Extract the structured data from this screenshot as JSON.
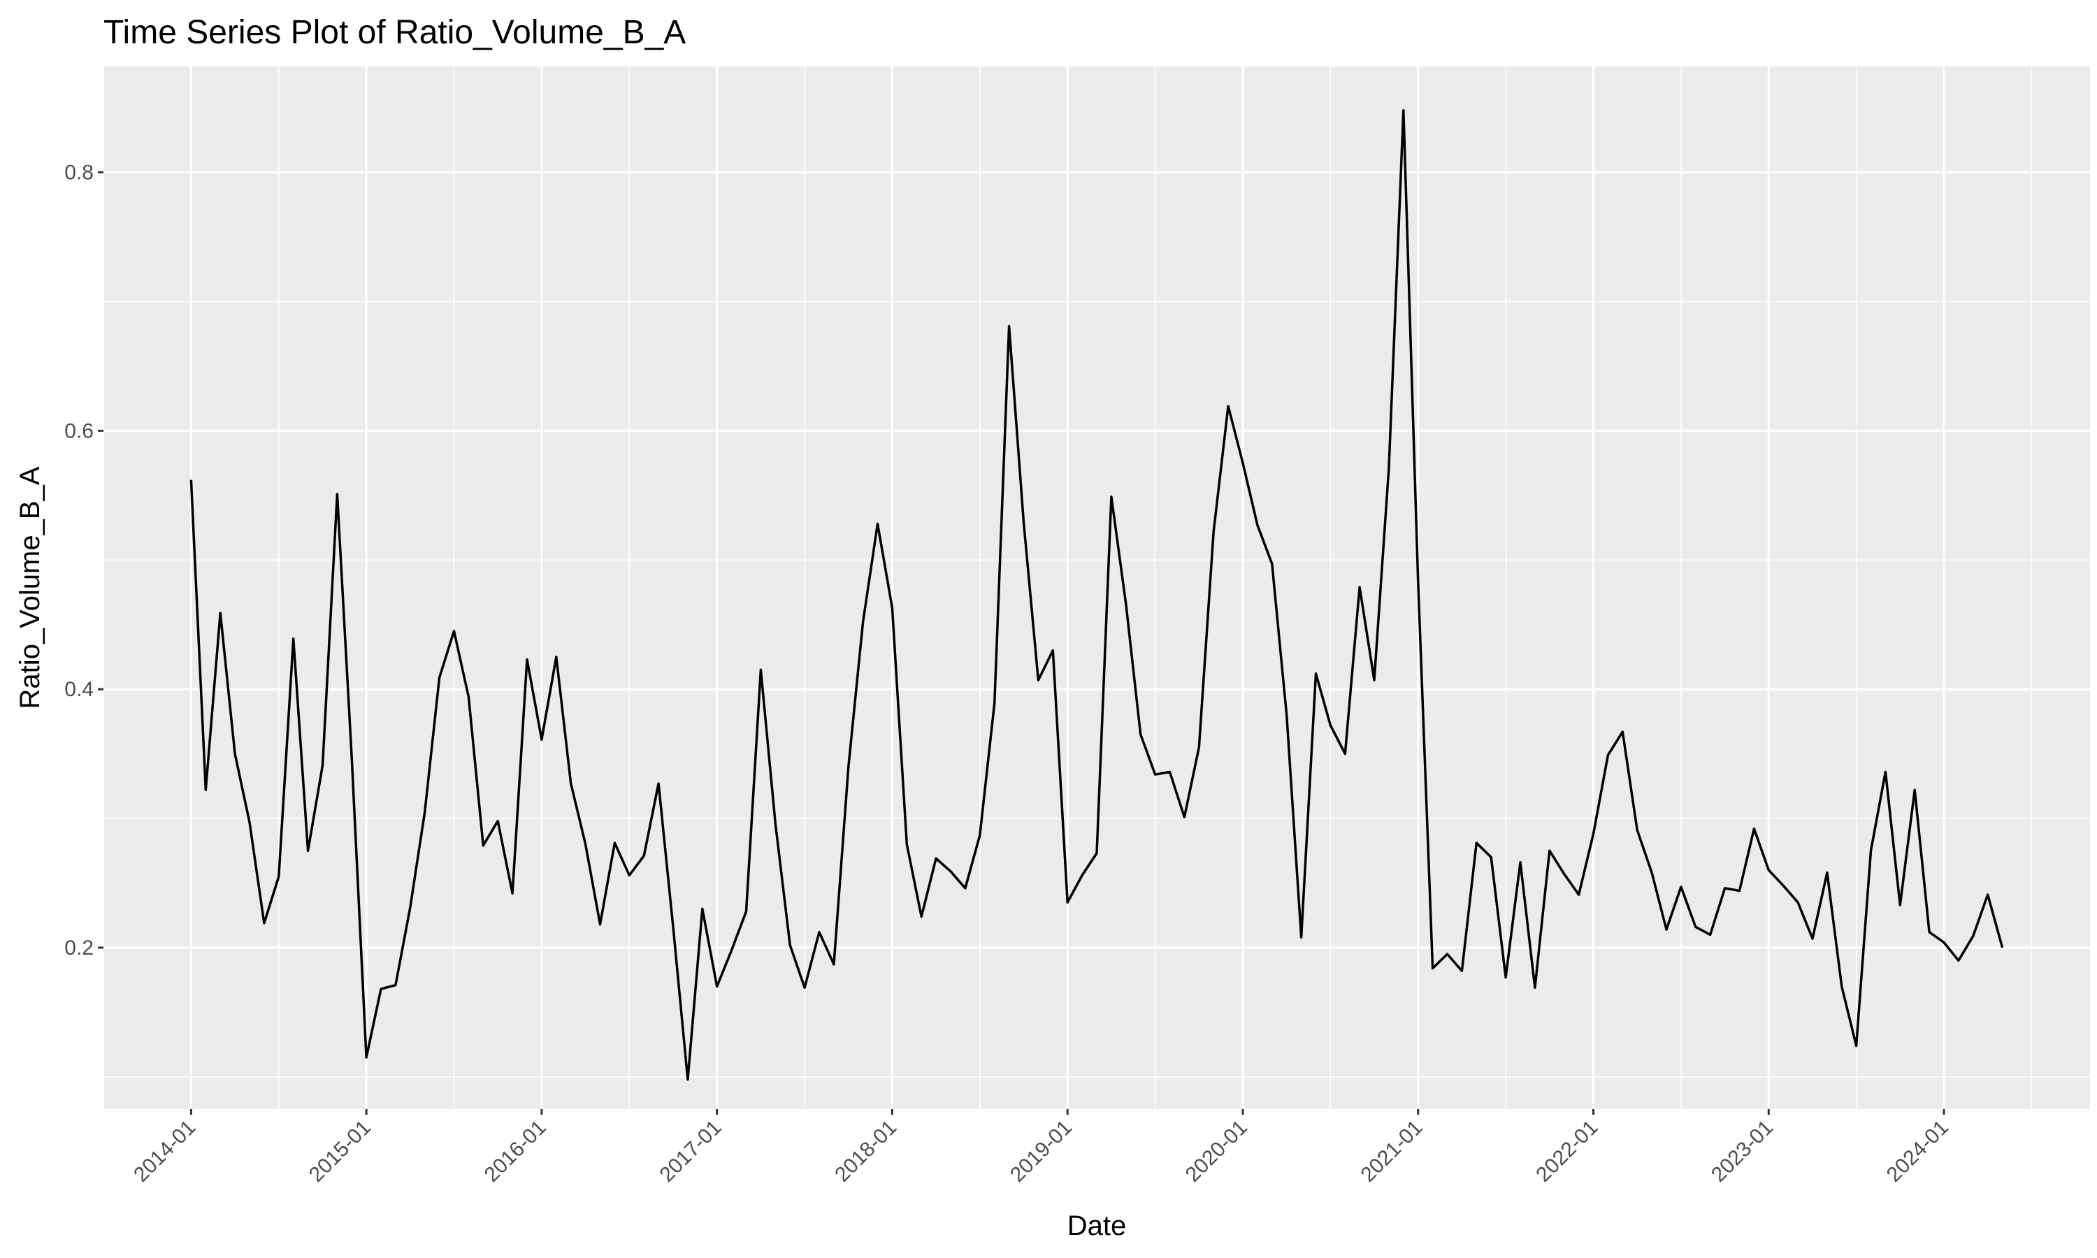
{
  "chart_data": {
    "type": "line",
    "title": "Time Series Plot of Ratio_Volume_B_A",
    "xlabel": "Date",
    "ylabel": "Ratio_Volume_B_A",
    "x_ticks": [
      "2014-01",
      "2015-01",
      "2016-01",
      "2017-01",
      "2018-01",
      "2019-01",
      "2020-01",
      "2021-01",
      "2022-01",
      "2023-01",
      "2024-01"
    ],
    "y_ticks": [
      0.2,
      0.4,
      0.6,
      0.8
    ],
    "y_tick_labels": [
      "0.2",
      "0.4",
      "0.6",
      "0.8"
    ],
    "xlim": [
      "2013-07",
      "2024-11"
    ],
    "ylim": [
      0.075,
      0.882
    ],
    "grid": true,
    "series": [
      {
        "color": "#000000",
        "x": [
          "2014-01",
          "2014-02",
          "2014-03",
          "2014-04",
          "2014-05",
          "2014-06",
          "2014-07",
          "2014-08",
          "2014-09",
          "2014-10",
          "2014-11",
          "2014-12",
          "2015-01",
          "2015-02",
          "2015-03",
          "2015-04",
          "2015-05",
          "2015-06",
          "2015-07",
          "2015-08",
          "2015-09",
          "2015-10",
          "2015-11",
          "2015-12",
          "2016-01",
          "2016-02",
          "2016-03",
          "2016-04",
          "2016-05",
          "2016-06",
          "2016-07",
          "2016-08",
          "2016-09",
          "2016-10",
          "2016-11",
          "2016-12",
          "2017-01",
          "2017-02",
          "2017-03",
          "2017-04",
          "2017-05",
          "2017-06",
          "2017-07",
          "2017-08",
          "2017-09",
          "2017-10",
          "2017-11",
          "2017-12",
          "2018-01",
          "2018-02",
          "2018-03",
          "2018-04",
          "2018-05",
          "2018-06",
          "2018-07",
          "2018-08",
          "2018-09",
          "2018-10",
          "2018-11",
          "2018-12",
          "2019-01",
          "2019-02",
          "2019-03",
          "2019-04",
          "2019-05",
          "2019-06",
          "2019-07",
          "2019-08",
          "2019-09",
          "2019-10",
          "2019-11",
          "2019-12",
          "2020-01",
          "2020-02",
          "2020-03",
          "2020-04",
          "2020-05",
          "2020-06",
          "2020-07",
          "2020-08",
          "2020-09",
          "2020-10",
          "2020-11",
          "2020-12",
          "2021-01",
          "2021-02",
          "2021-03",
          "2021-04",
          "2021-05",
          "2021-06",
          "2021-07",
          "2021-08",
          "2021-09",
          "2021-10",
          "2021-11",
          "2021-12",
          "2022-01",
          "2022-02",
          "2022-03",
          "2022-04",
          "2022-05",
          "2022-06",
          "2022-07",
          "2022-08",
          "2022-09",
          "2022-10",
          "2022-11",
          "2022-12",
          "2023-01",
          "2023-02",
          "2023-03",
          "2023-04",
          "2023-05",
          "2023-06",
          "2023-07",
          "2023-08",
          "2023-09",
          "2023-10",
          "2023-11",
          "2023-12",
          "2024-01",
          "2024-02",
          "2024-03",
          "2024-04",
          "2024-05"
        ],
        "y": [
          0.562,
          0.322,
          0.459,
          0.35,
          0.297,
          0.219,
          0.255,
          0.439,
          0.275,
          0.341,
          0.551,
          0.346,
          0.115,
          0.168,
          0.171,
          0.231,
          0.305,
          0.409,
          0.445,
          0.394,
          0.279,
          0.298,
          0.242,
          0.423,
          0.361,
          0.425,
          0.327,
          0.28,
          0.218,
          0.281,
          0.256,
          0.271,
          0.327,
          0.216,
          0.098,
          0.23,
          0.17,
          0.198,
          0.228,
          0.415,
          0.296,
          0.202,
          0.169,
          0.212,
          0.187,
          0.34,
          0.452,
          0.528,
          0.463,
          0.28,
          0.224,
          0.269,
          0.259,
          0.246,
          0.287,
          0.389,
          0.681,
          0.529,
          0.407,
          0.43,
          0.235,
          0.256,
          0.273,
          0.549,
          0.466,
          0.365,
          0.334,
          0.336,
          0.301,
          0.355,
          0.522,
          0.619,
          0.575,
          0.527,
          0.497,
          0.38,
          0.208,
          0.412,
          0.372,
          0.35,
          0.479,
          0.407,
          0.571,
          0.848,
          0.484,
          0.184,
          0.195,
          0.182,
          0.281,
          0.27,
          0.177,
          0.266,
          0.169,
          0.275,
          0.257,
          0.241,
          0.288,
          0.349,
          0.367,
          0.291,
          0.258,
          0.214,
          0.247,
          0.216,
          0.21,
          0.246,
          0.244,
          0.292,
          0.26,
          0.248,
          0.235,
          0.207,
          0.258,
          0.17,
          0.124,
          0.275,
          0.336,
          0.233,
          0.322,
          0.212,
          0.204,
          0.19,
          0.209,
          0.241,
          0.2
        ]
      }
    ]
  }
}
